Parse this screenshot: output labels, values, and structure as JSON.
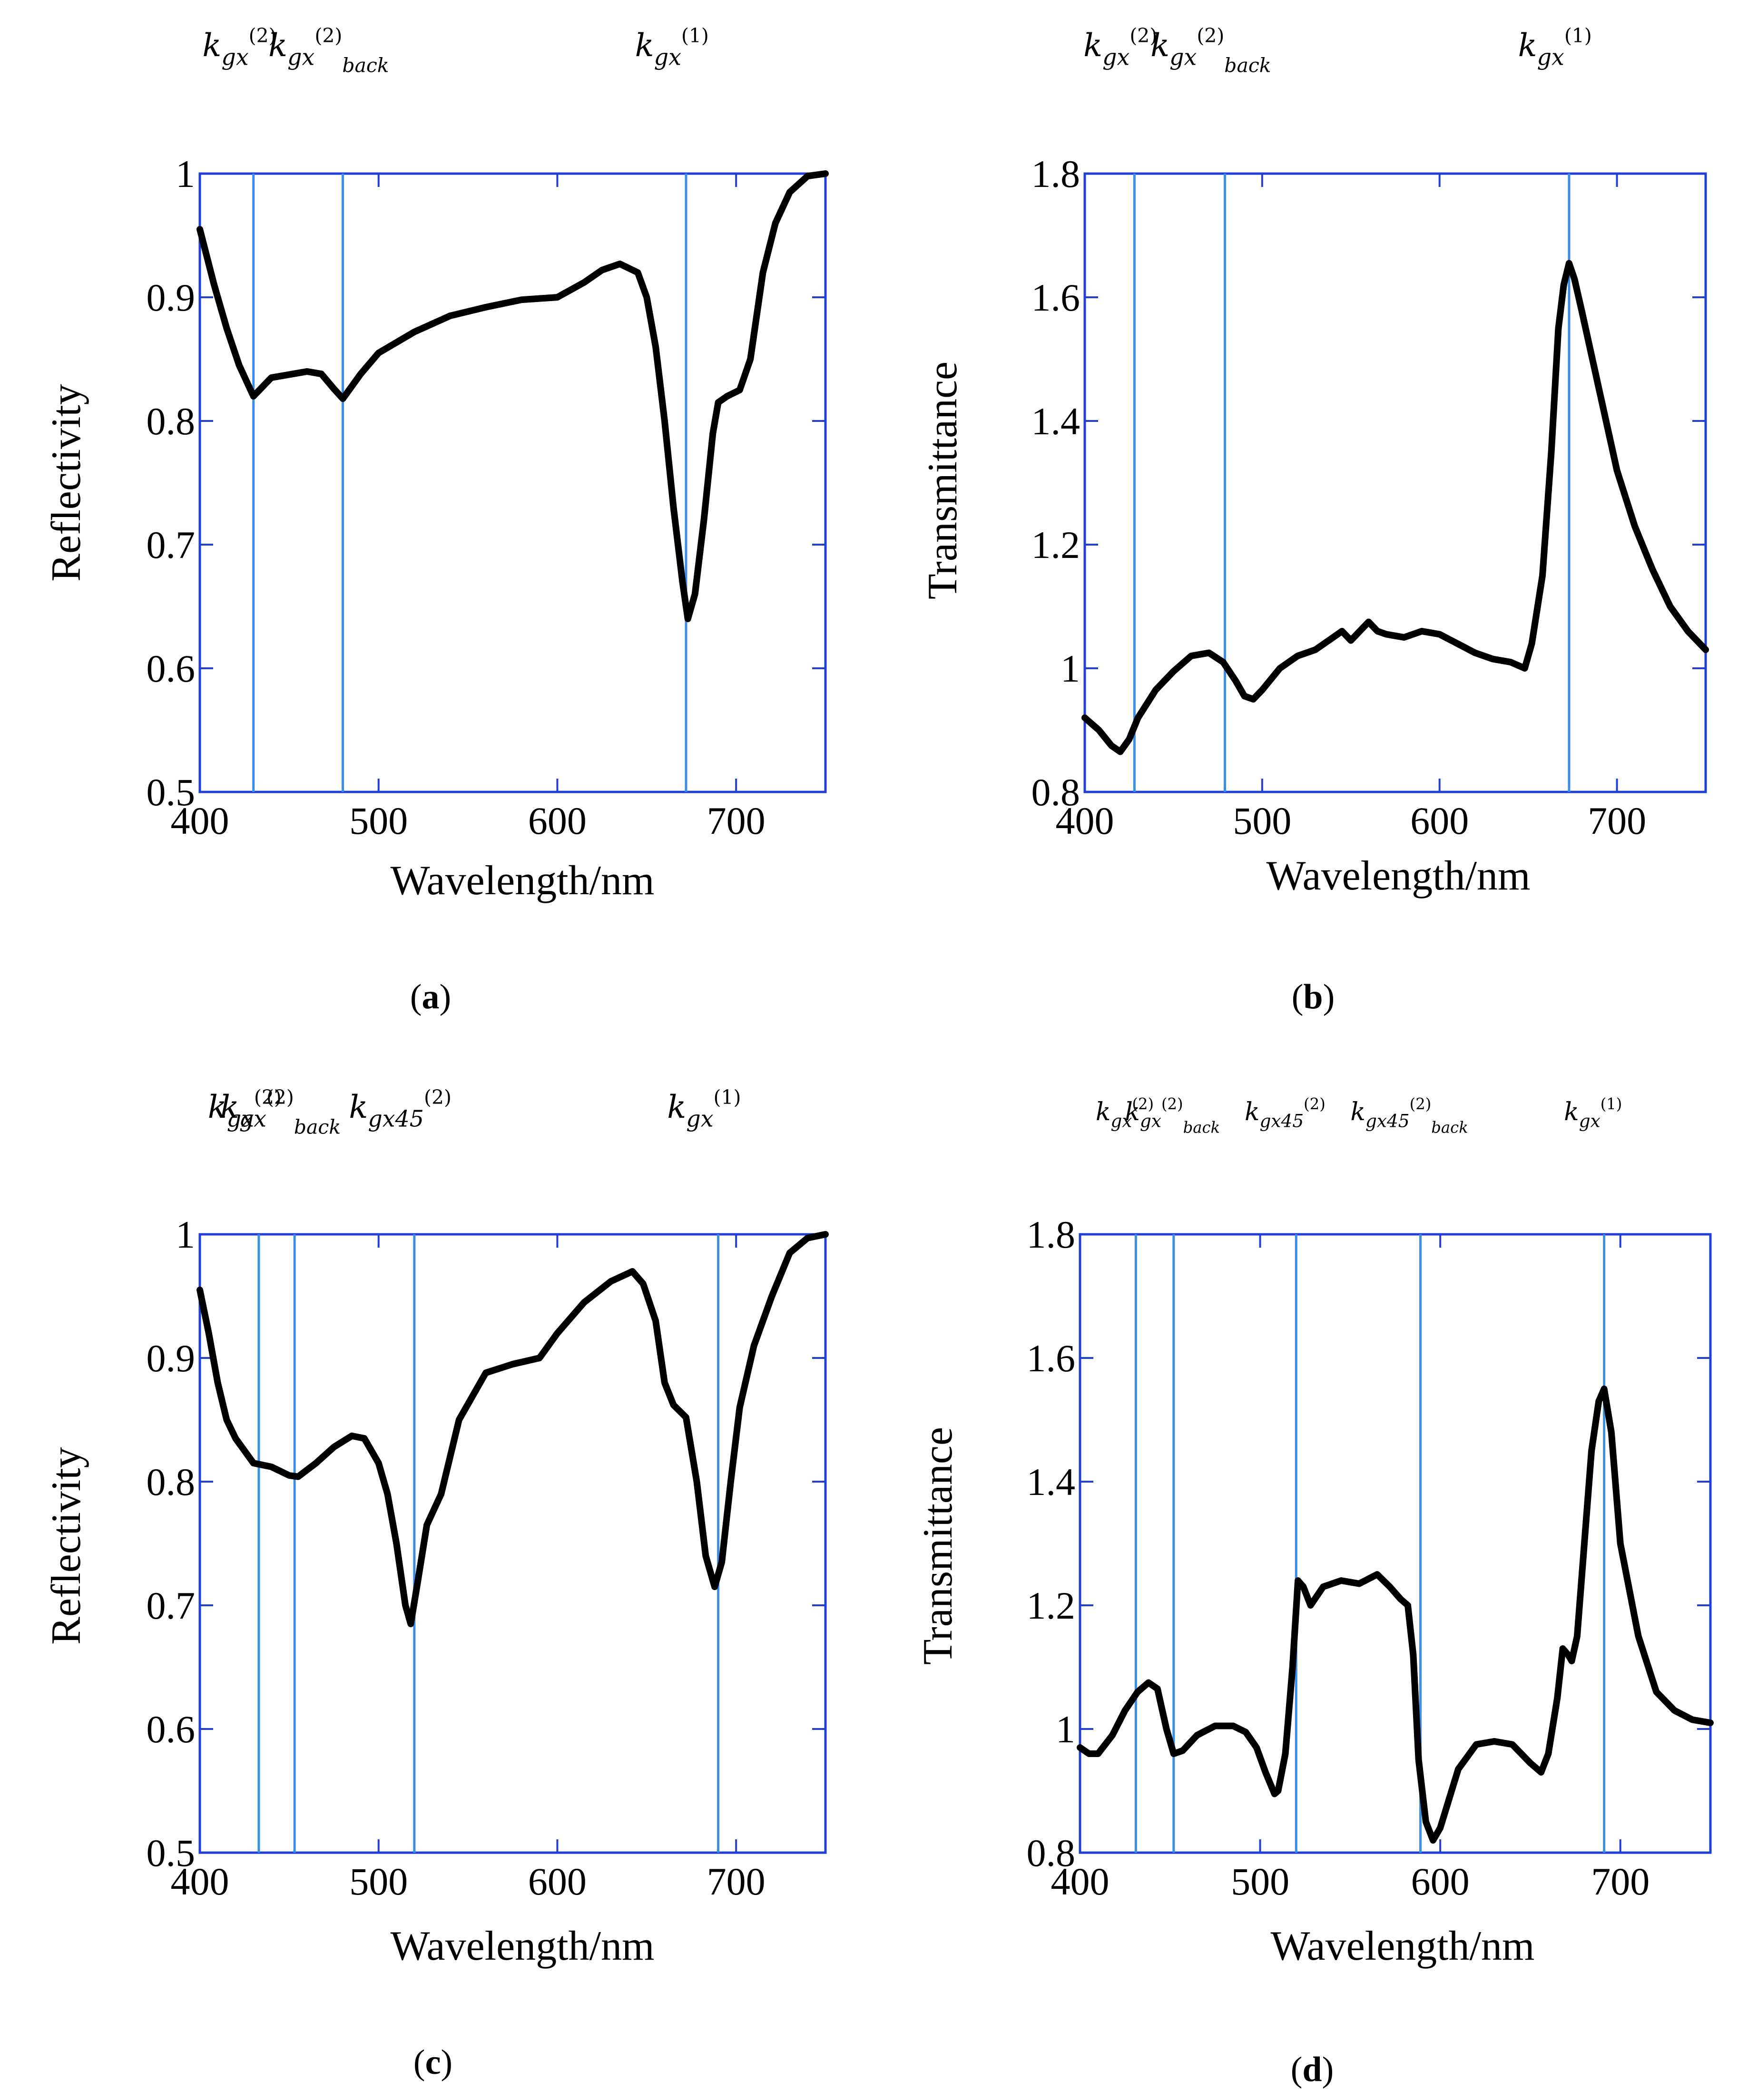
{
  "chart_data": [
    {
      "type": "line",
      "panel_label": "a",
      "xlabel": "Wavelength/nm",
      "ylabel": "Reflectivity",
      "xlim": [
        400,
        750
      ],
      "ylim": [
        0.5,
        1.0
      ],
      "xticks": [
        400,
        500,
        600,
        700
      ],
      "yticks": [
        0.5,
        0.6,
        0.7,
        0.8,
        0.9,
        1
      ],
      "ytick_labels": [
        "0.5",
        "0.6",
        "0.7",
        "0.8",
        "0.9",
        "1"
      ],
      "vlines": [
        430,
        480,
        672
      ],
      "annotations": [
        {
          "sub": "gx",
          "sup": "(2)",
          "sub2": "",
          "at": 430
        },
        {
          "sub": "gx",
          "sup": "(2)",
          "sub2": "back",
          "at": 480
        },
        {
          "sub": "gx",
          "sup": "(1)",
          "sub2": "",
          "at": 672
        }
      ],
      "series": [
        {
          "name": "reflectivity",
          "x": [
            400,
            408,
            415,
            422,
            430,
            440,
            460,
            468,
            475,
            480,
            490,
            500,
            520,
            540,
            560,
            580,
            600,
            615,
            625,
            635,
            645,
            650,
            655,
            660,
            665,
            670,
            673,
            677,
            682,
            687,
            690,
            695,
            702,
            708,
            715,
            722,
            730,
            740,
            750
          ],
          "y": [
            0.955,
            0.91,
            0.875,
            0.845,
            0.82,
            0.835,
            0.84,
            0.838,
            0.826,
            0.818,
            0.838,
            0.855,
            0.872,
            0.885,
            0.892,
            0.898,
            0.9,
            0.912,
            0.922,
            0.927,
            0.92,
            0.9,
            0.86,
            0.8,
            0.73,
            0.67,
            0.64,
            0.66,
            0.72,
            0.79,
            0.815,
            0.82,
            0.825,
            0.85,
            0.92,
            0.96,
            0.985,
            0.998,
            1.0
          ]
        }
      ]
    },
    {
      "type": "line",
      "panel_label": "b",
      "xlabel": "Wavelength/nm",
      "ylabel": "Transmittance",
      "xlim": [
        400,
        750
      ],
      "ylim": [
        0.8,
        1.8
      ],
      "xticks": [
        400,
        500,
        600,
        700
      ],
      "yticks": [
        0.8,
        1.0,
        1.2,
        1.4,
        1.6,
        1.8
      ],
      "ytick_labels": [
        "0.8",
        "1",
        "1.2",
        "1.4",
        "1.6",
        "1.8"
      ],
      "vlines": [
        428,
        479,
        673
      ],
      "annotations": [
        {
          "sub": "gx",
          "sup": "(2)",
          "sub2": "",
          "at": 428
        },
        {
          "sub": "gx",
          "sup": "(2)",
          "sub2": "back",
          "at": 479
        },
        {
          "sub": "gx",
          "sup": "(1)",
          "sub2": "",
          "at": 673
        }
      ],
      "series": [
        {
          "name": "transmittance",
          "x": [
            400,
            408,
            415,
            420,
            425,
            430,
            440,
            450,
            460,
            470,
            478,
            485,
            490,
            495,
            500,
            510,
            520,
            530,
            540,
            545,
            550,
            555,
            560,
            565,
            570,
            580,
            590,
            600,
            610,
            620,
            630,
            640,
            648,
            652,
            658,
            663,
            667,
            670,
            673,
            676,
            680,
            690,
            700,
            710,
            720,
            730,
            740,
            750
          ],
          "y": [
            0.92,
            0.9,
            0.875,
            0.865,
            0.885,
            0.92,
            0.965,
            0.995,
            1.02,
            1.025,
            1.01,
            0.98,
            0.955,
            0.95,
            0.965,
            1.0,
            1.02,
            1.03,
            1.05,
            1.06,
            1.045,
            1.06,
            1.075,
            1.06,
            1.055,
            1.05,
            1.06,
            1.055,
            1.04,
            1.025,
            1.015,
            1.01,
            1.0,
            1.04,
            1.15,
            1.35,
            1.55,
            1.62,
            1.655,
            1.63,
            1.58,
            1.45,
            1.32,
            1.23,
            1.16,
            1.1,
            1.06,
            1.03
          ]
        }
      ]
    },
    {
      "type": "line",
      "panel_label": "c",
      "xlabel": "Wavelength/nm",
      "ylabel": "Reflectivity",
      "xlim": [
        400,
        750
      ],
      "ylim": [
        0.5,
        1.0
      ],
      "xticks": [
        400,
        500,
        600,
        700
      ],
      "yticks": [
        0.5,
        0.6,
        0.7,
        0.8,
        0.9,
        1
      ],
      "ytick_labels": [
        "0.5",
        "0.6",
        "0.7",
        "0.8",
        "0.9",
        "1"
      ],
      "vlines": [
        433,
        453,
        520,
        690
      ],
      "annotations": [
        {
          "sub": "gx",
          "sup": "(2)",
          "sub2": "",
          "at": 433
        },
        {
          "sub": "gx",
          "sup": "(2)",
          "sub2": "back",
          "at": 453
        },
        {
          "sub": "gx45",
          "sup": "(2)",
          "sub2": "",
          "at": 520
        },
        {
          "sub": "gx",
          "sup": "(1)",
          "sub2": "",
          "at": 690
        }
      ],
      "series": [
        {
          "name": "reflectivity",
          "x": [
            400,
            405,
            410,
            415,
            420,
            430,
            440,
            450,
            455,
            465,
            475,
            485,
            492,
            500,
            505,
            510,
            515,
            518,
            522,
            527,
            535,
            545,
            560,
            575,
            590,
            600,
            615,
            630,
            642,
            648,
            655,
            660,
            665,
            672,
            678,
            683,
            688,
            692,
            697,
            702,
            710,
            720,
            730,
            740,
            750
          ],
          "y": [
            0.955,
            0.92,
            0.88,
            0.85,
            0.835,
            0.815,
            0.812,
            0.805,
            0.804,
            0.815,
            0.828,
            0.837,
            0.835,
            0.815,
            0.79,
            0.75,
            0.7,
            0.685,
            0.72,
            0.765,
            0.79,
            0.85,
            0.888,
            0.895,
            0.9,
            0.92,
            0.945,
            0.962,
            0.97,
            0.96,
            0.93,
            0.88,
            0.862,
            0.852,
            0.8,
            0.74,
            0.715,
            0.735,
            0.8,
            0.86,
            0.91,
            0.95,
            0.985,
            0.997,
            1.0
          ]
        }
      ]
    },
    {
      "type": "line",
      "panel_label": "d",
      "xlabel": "Wavelength/nm",
      "ylabel": "Transmittance",
      "xlim": [
        400,
        750
      ],
      "ylim": [
        0.8,
        1.8
      ],
      "xticks": [
        400,
        500,
        600,
        700
      ],
      "yticks": [
        0.8,
        1.0,
        1.2,
        1.4,
        1.6,
        1.8
      ],
      "ytick_labels": [
        "0.8",
        "1",
        "1.2",
        "1.4",
        "1.6",
        "1.8"
      ],
      "vlines": [
        431,
        452,
        520,
        589,
        691
      ],
      "annotations": [
        {
          "sub": "gx",
          "sup": "(2)",
          "sub2": "",
          "at": 431
        },
        {
          "sub": "gx",
          "sup": "(2)",
          "sub2": "back",
          "at": 452
        },
        {
          "sub": "gx45",
          "sup": "(2)",
          "sub2": "",
          "at": 520
        },
        {
          "sub": "gx45",
          "sup": "(2)",
          "sub2": "back",
          "at": 589
        },
        {
          "sub": "gx",
          "sup": "(1)",
          "sub2": "",
          "at": 691
        }
      ],
      "series": [
        {
          "name": "transmittance",
          "x": [
            400,
            405,
            410,
            418,
            425,
            432,
            438,
            443,
            448,
            452,
            457,
            465,
            475,
            485,
            492,
            498,
            503,
            508,
            510,
            514,
            518,
            521,
            524,
            528,
            535,
            545,
            555,
            565,
            572,
            578,
            582,
            585,
            588,
            592,
            596,
            600,
            610,
            620,
            630,
            640,
            650,
            656,
            660,
            665,
            668,
            671,
            673,
            676,
            680,
            684,
            688,
            691,
            695,
            700,
            710,
            720,
            730,
            740,
            750
          ],
          "y": [
            0.97,
            0.96,
            0.96,
            0.99,
            1.03,
            1.06,
            1.075,
            1.065,
            1.0,
            0.96,
            0.965,
            0.99,
            1.005,
            1.005,
            0.995,
            0.97,
            0.93,
            0.895,
            0.9,
            0.96,
            1.1,
            1.24,
            1.23,
            1.2,
            1.23,
            1.24,
            1.235,
            1.25,
            1.23,
            1.21,
            1.2,
            1.12,
            0.95,
            0.85,
            0.82,
            0.84,
            0.935,
            0.975,
            0.98,
            0.975,
            0.945,
            0.93,
            0.96,
            1.05,
            1.13,
            1.12,
            1.11,
            1.15,
            1.3,
            1.45,
            1.53,
            1.55,
            1.48,
            1.3,
            1.15,
            1.06,
            1.03,
            1.015,
            1.01
          ]
        }
      ]
    }
  ]
}
